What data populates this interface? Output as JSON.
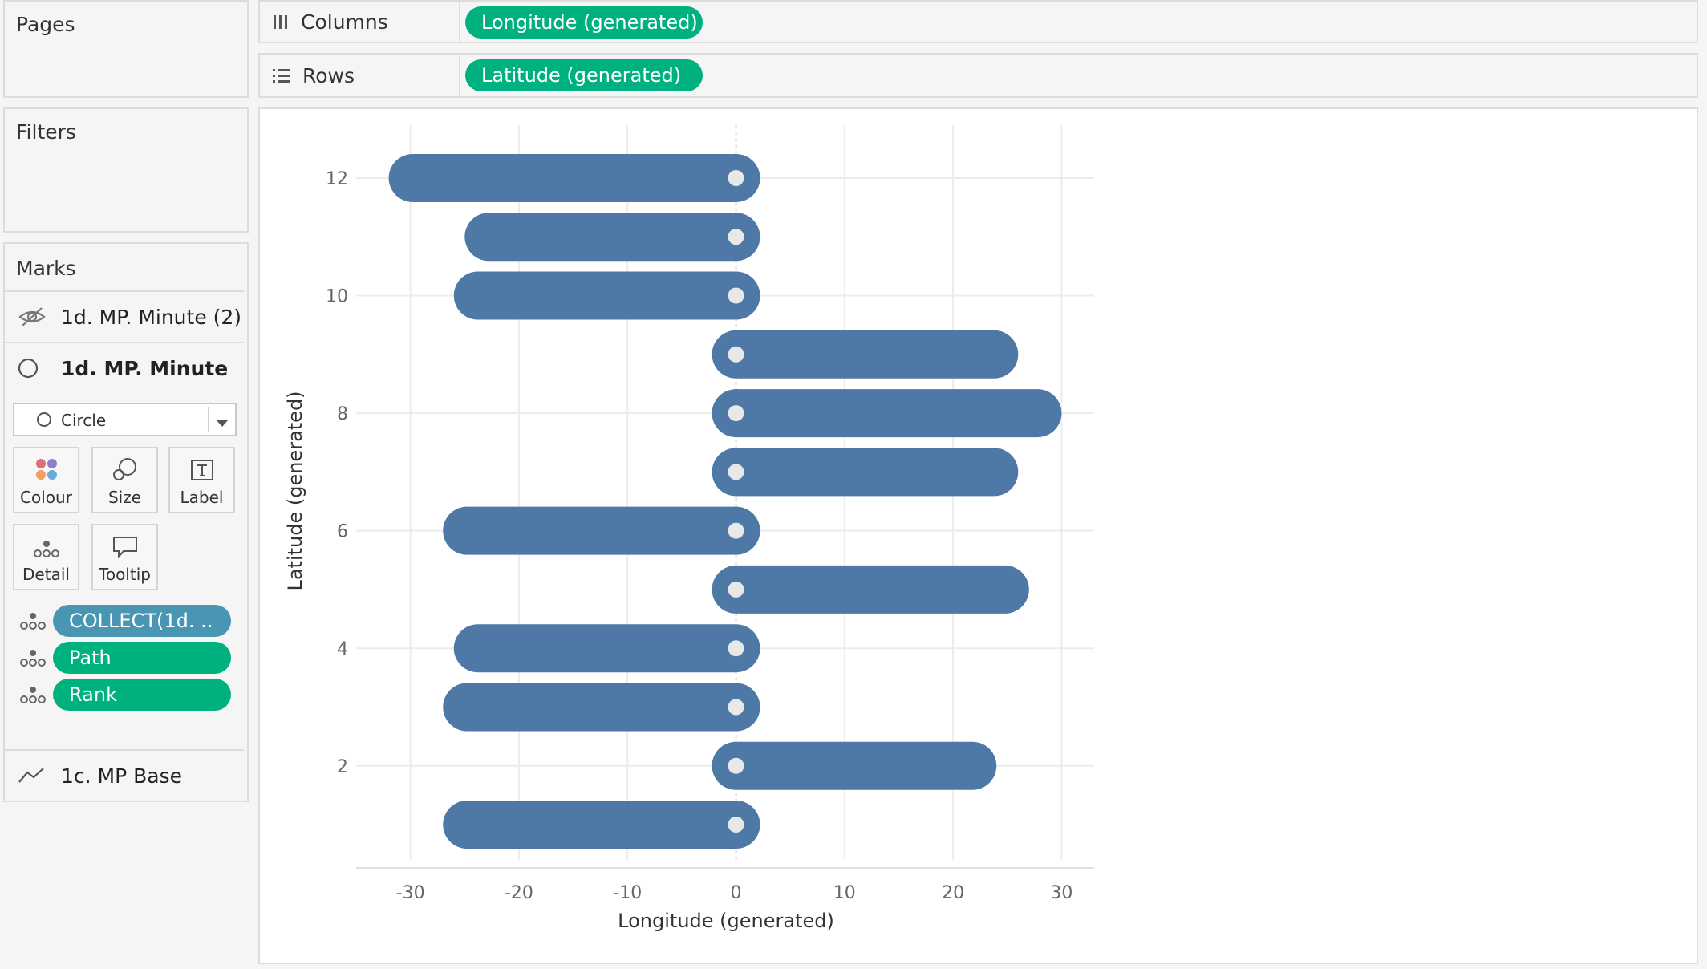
{
  "panels": {
    "pages_title": "Pages",
    "filters_title": "Filters",
    "marks_title": "Marks"
  },
  "shelves": {
    "columns": {
      "label": "Columns",
      "pill": "Longitude (generated)"
    },
    "rows": {
      "label": "Rows",
      "pill": "Latitude (generated)"
    }
  },
  "marks": {
    "layers": [
      {
        "label": "1d. MP. Minute (2)",
        "icon": "eye-hidden-icon"
      },
      {
        "label": "1d. MP. Minute",
        "icon": "circle-icon"
      },
      {
        "label": "1c. MP Base",
        "icon": "line-icon"
      }
    ],
    "mark_type": "Circle",
    "cards": {
      "colour": "Colour",
      "size": "Size",
      "label": "Label",
      "detail": "Detail",
      "tooltip": "Tooltip"
    },
    "fields": [
      "COLLECT(1d. ..",
      "Path",
      "Rank"
    ]
  },
  "colors": {
    "pill_green": "#00b180",
    "pill_blue": "#4996b2",
    "bar": "#4e79a7",
    "dot": "#e8e8e8"
  },
  "chart_data": {
    "type": "bar",
    "orientation": "horizontal",
    "xlabel": "Longitude (generated)",
    "ylabel": "Latitude (generated)",
    "xlim": [
      -35,
      33
    ],
    "ylim": [
      0.4,
      12.9
    ],
    "xticks": [
      -30,
      -20,
      -10,
      0,
      10,
      20,
      30
    ],
    "yticks": [
      2,
      4,
      6,
      8,
      10,
      12
    ],
    "grid": true,
    "bars": [
      {
        "y": 12,
        "x_start": 0,
        "x_end": -32
      },
      {
        "y": 11,
        "x_start": 0,
        "x_end": -25
      },
      {
        "y": 10,
        "x_start": 0,
        "x_end": -26
      },
      {
        "y": 9,
        "x_start": 0,
        "x_end": 26
      },
      {
        "y": 8,
        "x_start": 0,
        "x_end": 30
      },
      {
        "y": 7,
        "x_start": 0,
        "x_end": 26
      },
      {
        "y": 6,
        "x_start": 0,
        "x_end": -27
      },
      {
        "y": 5,
        "x_start": 0,
        "x_end": 27
      },
      {
        "y": 4,
        "x_start": 0,
        "x_end": -26
      },
      {
        "y": 3,
        "x_start": 0,
        "x_end": -27
      },
      {
        "y": 2,
        "x_start": 0,
        "x_end": 24
      },
      {
        "y": 1,
        "x_start": 0,
        "x_end": -27
      }
    ]
  }
}
